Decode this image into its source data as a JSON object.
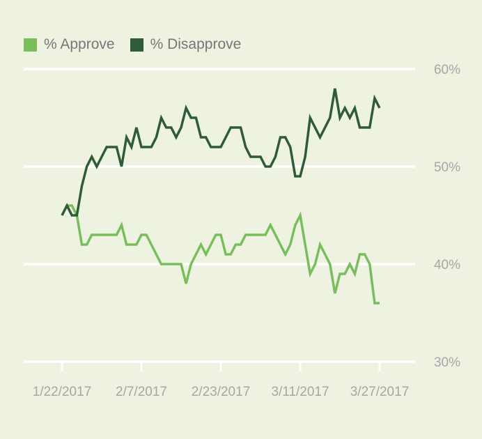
{
  "chart_data": {
    "type": "line",
    "title": "",
    "xlabel": "",
    "ylabel": "",
    "ylim": [
      30,
      60
    ],
    "yticks": [
      "30%",
      "40%",
      "50%",
      "60%"
    ],
    "ytick_values": [
      30,
      40,
      50,
      60
    ],
    "xticks": [
      "1/22/2017",
      "2/7/2017",
      "2/23/2017",
      "3/11/2017",
      "3/27/2017"
    ],
    "xtick_index": [
      0,
      16,
      32,
      48,
      64
    ],
    "x_count": 65,
    "legend_position": "top-left",
    "series": [
      {
        "name": "% Approve",
        "color": "#79BD5C",
        "values": [
          45,
          46,
          46,
          45,
          42,
          42,
          43,
          43,
          43,
          43,
          43,
          43,
          44,
          42,
          42,
          42,
          43,
          43,
          42,
          41,
          40,
          40,
          40,
          40,
          40,
          38,
          40,
          41,
          42,
          41,
          42,
          43,
          43,
          41,
          41,
          42,
          42,
          43,
          43,
          43,
          43,
          43,
          44,
          43,
          42,
          41,
          42,
          44,
          45,
          42,
          39,
          40,
          42,
          41,
          40,
          37,
          39,
          39,
          40,
          39,
          41,
          41,
          40,
          36,
          36
        ]
      },
      {
        "name": "% Disapprove",
        "color": "#2F5B37",
        "values": [
          45,
          46,
          45,
          45,
          48,
          50,
          51,
          50,
          51,
          52,
          52,
          52,
          50,
          53,
          52,
          54,
          52,
          52,
          52,
          53,
          55,
          54,
          54,
          53,
          54,
          56,
          55,
          55,
          53,
          53,
          52,
          52,
          52,
          53,
          54,
          54,
          54,
          52,
          51,
          51,
          51,
          50,
          50,
          51,
          53,
          53,
          52,
          49,
          49,
          51,
          55,
          54,
          53,
          54,
          55,
          58,
          55,
          56,
          55,
          56,
          54,
          54,
          54,
          57,
          56
        ]
      }
    ]
  }
}
